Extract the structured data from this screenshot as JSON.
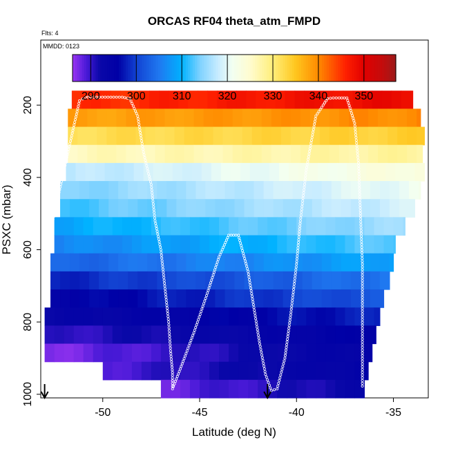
{
  "chart_data": {
    "type": "heatmap",
    "title": "ORCAS RF04 theta_atm_FMPD",
    "subtitle_flights": "Flts: 4",
    "subtitle_date": "MMDD: 0123",
    "xlabel": "Latitude (deg N)",
    "ylabel": "PSXC (mbar)",
    "xlim": [
      -53.2,
      -33.2
    ],
    "ylim": [
      1010,
      20
    ],
    "x_ticks": [
      -50,
      -45,
      -40,
      -35
    ],
    "y_ticks": [
      200,
      400,
      600,
      800,
      1000
    ],
    "colorbar": {
      "range": [
        286,
        357
      ],
      "ticks": [
        290,
        300,
        310,
        320,
        330,
        340,
        350
      ],
      "stops": [
        {
          "v": 286,
          "c": "#9a35f2"
        },
        {
          "v": 289,
          "c": "#4a1ad8"
        },
        {
          "v": 292,
          "c": "#0a08a8"
        },
        {
          "v": 296,
          "c": "#0000a6"
        },
        {
          "v": 300,
          "c": "#1242d2"
        },
        {
          "v": 305,
          "c": "#1f78f0"
        },
        {
          "v": 310,
          "c": "#00b2ff"
        },
        {
          "v": 314,
          "c": "#7fd2ff"
        },
        {
          "v": 318,
          "c": "#c8ecff"
        },
        {
          "v": 321,
          "c": "#f2fff2"
        },
        {
          "v": 325,
          "c": "#fffccf"
        },
        {
          "v": 330,
          "c": "#ffee7a"
        },
        {
          "v": 335,
          "c": "#ffc61e"
        },
        {
          "v": 340,
          "c": "#ff8a00"
        },
        {
          "v": 346,
          "c": "#ff2000"
        },
        {
          "v": 350,
          "c": "#e00000"
        },
        {
          "v": 354,
          "c": "#c40c0c"
        },
        {
          "v": 357,
          "c": "#9c1a1a"
        }
      ]
    },
    "levels": [
      {
        "p": 185,
        "x0": -51.6,
        "x1": -34.0,
        "v0": 345,
        "v1": 349
      },
      {
        "p": 235,
        "x0": -51.8,
        "x1": -33.6,
        "v0": 338,
        "v1": 340
      },
      {
        "p": 285,
        "x0": -51.8,
        "x1": -33.4,
        "v0": 332,
        "v1": 334
      },
      {
        "p": 335,
        "x0": -51.8,
        "x1": -33.5,
        "v0": 326,
        "v1": 328
      },
      {
        "p": 385,
        "x0": -51.9,
        "x1": -33.4,
        "v0": 317,
        "v1": 324
      },
      {
        "p": 435,
        "x0": -52.2,
        "x1": -33.6,
        "v0": 314,
        "v1": 321
      },
      {
        "p": 485,
        "x0": -52.2,
        "x1": -33.9,
        "v0": 312,
        "v1": 319
      },
      {
        "p": 535,
        "x0": -52.5,
        "x1": -34.4,
        "v0": 309,
        "v1": 316
      },
      {
        "p": 585,
        "x0": -52.5,
        "x1": -34.9,
        "v0": 306,
        "v1": 313
      },
      {
        "p": 635,
        "x0": -52.7,
        "x1": -35.0,
        "v0": 303,
        "v1": 309
      },
      {
        "p": 685,
        "x0": -52.7,
        "x1": -35.2,
        "v0": 298,
        "v1": 305
      },
      {
        "p": 735,
        "x0": -52.7,
        "x1": -35.5,
        "v0": 295,
        "v1": 302
      },
      {
        "p": 785,
        "x0": -53.0,
        "x1": -35.7,
        "v0": 293,
        "v1": 298
      },
      {
        "p": 835,
        "x0": -53.0,
        "x1": -35.9,
        "v0": 290,
        "v1": 296
      },
      {
        "p": 885,
        "x0": -53.0,
        "x1": -36.1,
        "v0": 287,
        "v1": 295
      },
      {
        "p": 935,
        "x0": -50.0,
        "x1": -36.3,
        "v0": 289,
        "v1": 295
      },
      {
        "p": 985,
        "x0": -47.0,
        "x1": -36.5,
        "v0": 288,
        "v1": 293
      }
    ],
    "flight_track": {
      "x": [
        -53.0,
        -51.2,
        -50.9,
        -49.0,
        -48.6,
        -48.2,
        -47.9,
        -47.5,
        -47.3,
        -47.0,
        -46.8,
        -46.6,
        -46.5,
        -46.4,
        -46.4,
        -46.0,
        -45.3,
        -44.6,
        -44.0,
        -43.5,
        -43.0,
        -42.5,
        -42.2,
        -41.9,
        -41.6,
        -41.3,
        -41.0,
        -40.6,
        -40.3,
        -40.0,
        -39.8,
        -39.5,
        -39.0,
        -38.4,
        -38.1,
        -37.8,
        -37.4,
        -37.0,
        -36.8,
        -36.7,
        -36.6,
        -36.6
      ],
      "y": [
        620,
        188,
        178,
        178,
        182,
        230,
        330,
        420,
        520,
        600,
        700,
        800,
        880,
        940,
        985,
        930,
        830,
        720,
        620,
        560,
        560,
        660,
        760,
        860,
        945,
        990,
        985,
        900,
        780,
        640,
        520,
        380,
        230,
        182,
        180,
        180,
        180,
        250,
        360,
        500,
        640,
        985
      ]
    },
    "arrows": [
      {
        "x": -53.0
      },
      {
        "x": -41.5
      }
    ]
  }
}
